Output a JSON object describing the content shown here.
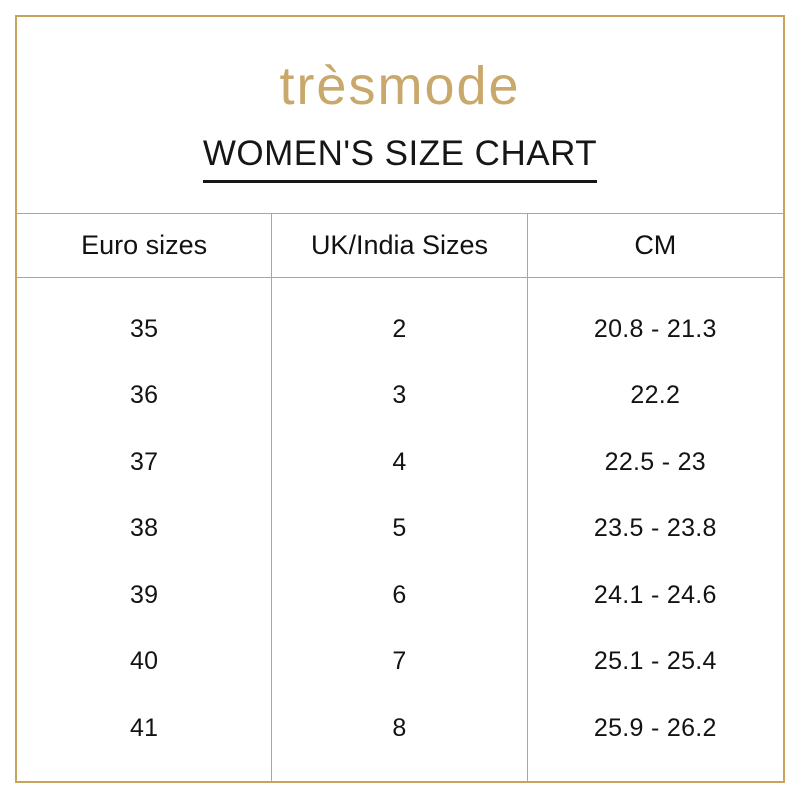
{
  "brand": {
    "logo_text": "trèsmode"
  },
  "title": "WOMEN'S SIZE CHART",
  "table": {
    "columns": [
      "Euro sizes",
      "UK/India Sizes",
      "CM"
    ],
    "rows": [
      [
        "35",
        "2",
        "20.8 - 21.3"
      ],
      [
        "36",
        "3",
        "22.2"
      ],
      [
        "37",
        "4",
        "22.5 - 23"
      ],
      [
        "38",
        "5",
        "23.5 - 23.8"
      ],
      [
        "39",
        "6",
        "24.1 - 24.6"
      ],
      [
        "40",
        "7",
        "25.1 - 25.4"
      ],
      [
        "41",
        "8",
        "25.9 - 26.2"
      ]
    ]
  },
  "chart_data": {
    "type": "table",
    "title": "WOMEN'S SIZE CHART",
    "columns": [
      "Euro sizes",
      "UK/India Sizes",
      "CM"
    ],
    "rows": [
      [
        "35",
        "2",
        "20.8 - 21.3"
      ],
      [
        "36",
        "3",
        "22.2"
      ],
      [
        "37",
        "4",
        "22.5 - 23"
      ],
      [
        "38",
        "5",
        "23.5 - 23.8"
      ],
      [
        "39",
        "6",
        "24.1 - 24.6"
      ],
      [
        "40",
        "7",
        "25.1 - 25.4"
      ],
      [
        "41",
        "8",
        "25.9 - 26.2"
      ]
    ]
  },
  "colors": {
    "gold_border": "#c9a25c",
    "gold_logo": "#c9a86b",
    "text": "#161616"
  }
}
